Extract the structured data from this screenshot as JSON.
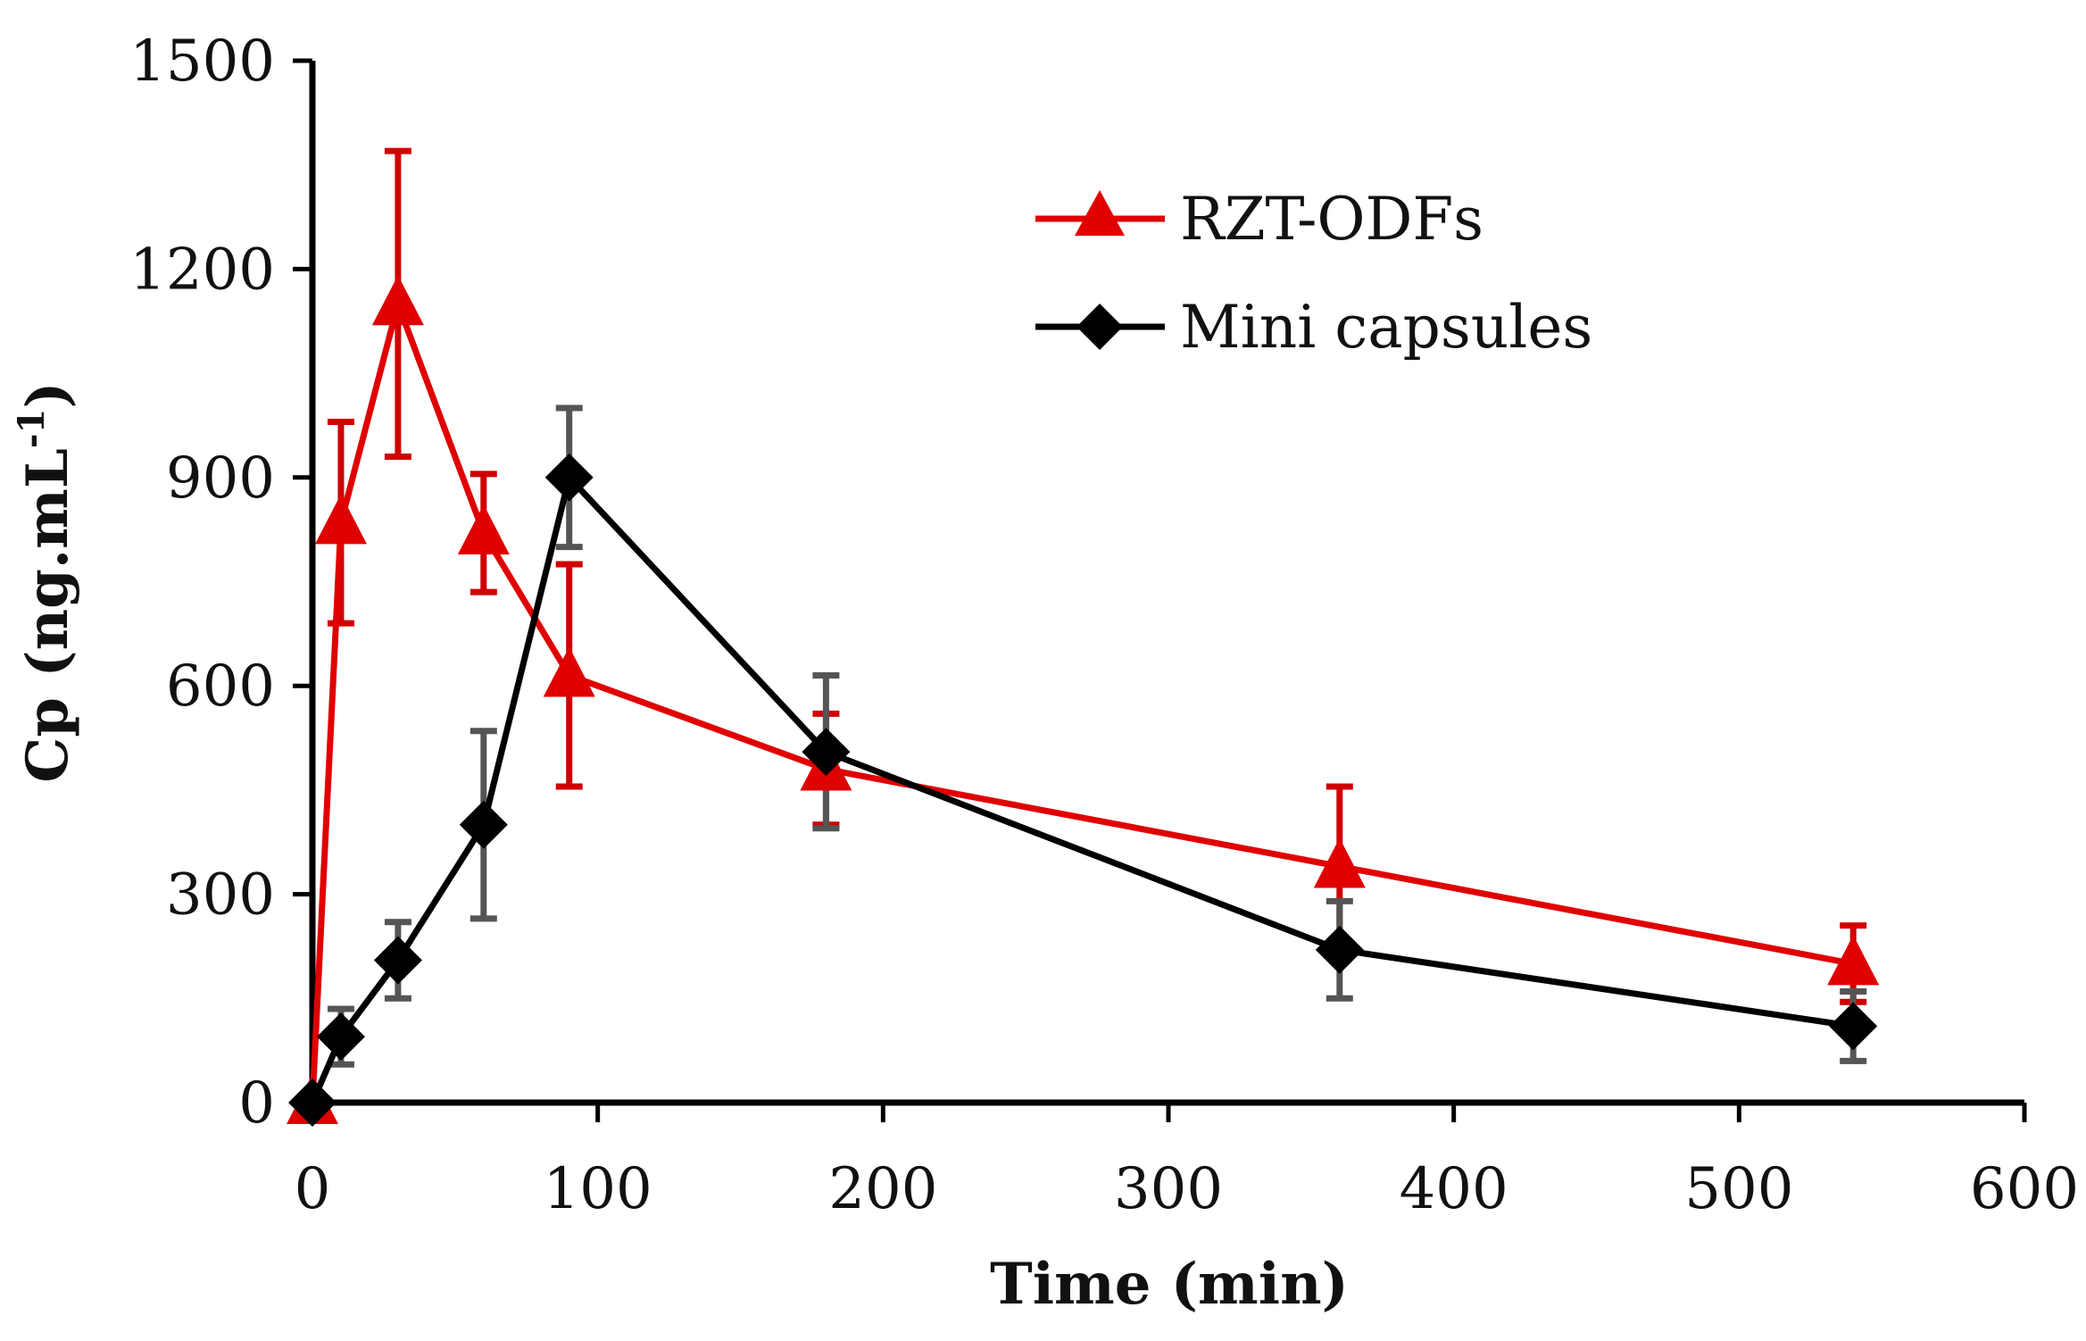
{
  "chart_data": {
    "type": "line",
    "title": "",
    "xlabel": "Time (min)",
    "ylabel": "Cp (ng.mL",
    "ylabel_superscript": "-1",
    "ylabel_close": ")",
    "xlim": [
      0,
      600
    ],
    "ylim": [
      0,
      1500
    ],
    "x_ticks": [
      0,
      100,
      200,
      300,
      400,
      500,
      600
    ],
    "y_ticks": [
      0,
      300,
      600,
      900,
      1200,
      1500
    ],
    "grid": false,
    "legend_position": "top-right",
    "series": [
      {
        "name": "RZT-ODFs",
        "color": "#e00000",
        "errorbar_color": "#d00000",
        "marker": "triangle",
        "x": [
          0,
          10,
          30,
          60,
          90,
          180,
          360,
          540
        ],
        "y": [
          0,
          835,
          1150,
          820,
          615,
          480,
          340,
          200
        ],
        "err": [
          0,
          145,
          220,
          85,
          160,
          80,
          115,
          55
        ]
      },
      {
        "name": "Mini capsules",
        "color": "#000000",
        "errorbar_color": "#555555",
        "marker": "diamond",
        "x": [
          0,
          10,
          30,
          60,
          90,
          180,
          360,
          540
        ],
        "y": [
          0,
          95,
          205,
          400,
          900,
          505,
          220,
          110
        ],
        "err": [
          0,
          40,
          55,
          135,
          100,
          110,
          70,
          50
        ]
      }
    ]
  }
}
